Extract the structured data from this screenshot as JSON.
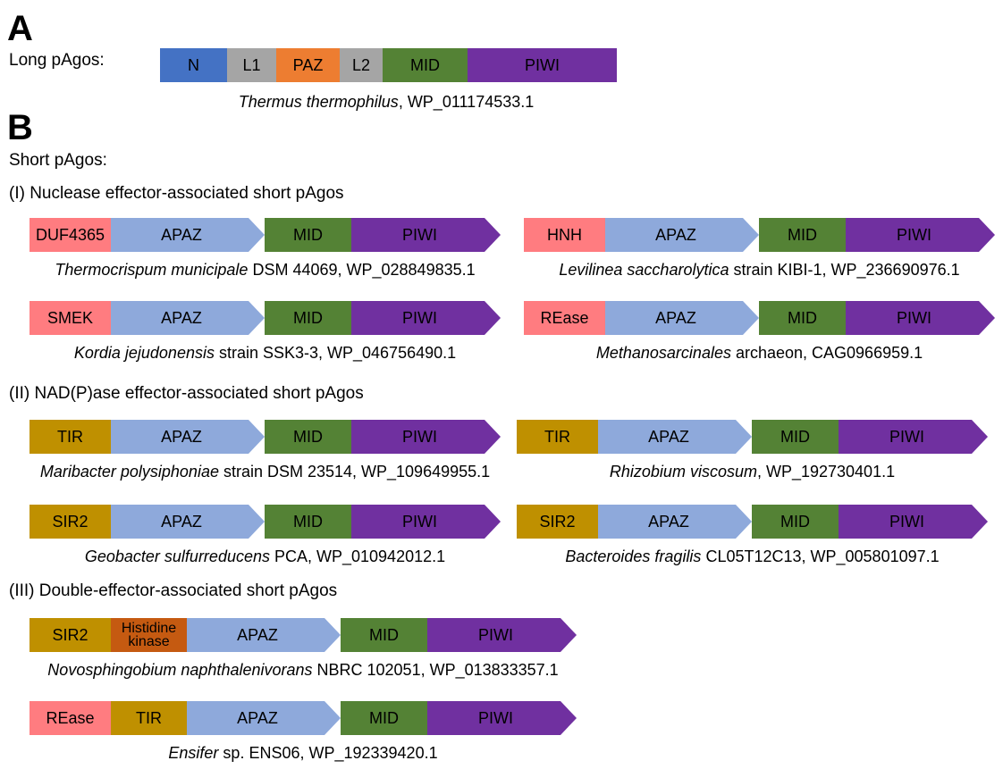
{
  "colors": {
    "N": "#4472C4",
    "L": "#A5A5A5",
    "PAZ": "#ED7D31",
    "MID": "#548235",
    "PIWI": "#7030A0",
    "APAZ": "#8EA9DB",
    "nuclease": "#FF7C80",
    "nadase": "#BF9000",
    "kinase": "#C55A11"
  },
  "panel_a": {
    "letter": "A",
    "title": "Long pAgos:",
    "construct": {
      "domains": [
        {
          "label": "N",
          "color": "N"
        },
        {
          "label": "L1",
          "color": "L"
        },
        {
          "label": "PAZ",
          "color": "PAZ"
        },
        {
          "label": "L2",
          "color": "L"
        },
        {
          "label": "MID",
          "color": "MID"
        },
        {
          "label": "PIWI",
          "color": "PIWI"
        }
      ],
      "species": "Thermus thermophilus",
      "rest": ", WP_011174533.1"
    }
  },
  "panel_b": {
    "letter": "B",
    "title": "Short pAgos:",
    "groups": [
      {
        "title": "(I) Nuclease effector-associated short pAgos",
        "constructs": [
          {
            "effectors": [
              {
                "label": "DUF4365",
                "color": "nuclease"
              }
            ],
            "species": "Thermocrispum municipale",
            "rest": " DSM 44069, WP_028849835.1"
          },
          {
            "effectors": [
              {
                "label": "HNH",
                "color": "nuclease"
              }
            ],
            "species": "Levilinea saccharolytica",
            "rest": " strain KIBI-1, WP_236690976.1"
          },
          {
            "effectors": [
              {
                "label": "SMEK",
                "color": "nuclease"
              }
            ],
            "species": "Kordia jejudonensis",
            "rest": " strain SSK3-3, WP_046756490.1"
          },
          {
            "effectors": [
              {
                "label": "REase",
                "color": "nuclease"
              }
            ],
            "species": "Methanosarcinales",
            "rest": " archaeon, CAG0966959.1"
          }
        ]
      },
      {
        "title": "(II) NAD(P)ase effector-associated short pAgos",
        "constructs": [
          {
            "effectors": [
              {
                "label": "TIR",
                "color": "nadase"
              }
            ],
            "species": "Maribacter polysiphoniae",
            "rest": " strain DSM 23514, WP_109649955.1"
          },
          {
            "effectors": [
              {
                "label": "TIR",
                "color": "nadase"
              }
            ],
            "species": "Rhizobium viscosum",
            "rest": ", WP_192730401.1"
          },
          {
            "effectors": [
              {
                "label": "SIR2",
                "color": "nadase"
              }
            ],
            "species": "Geobacter sulfurreducens",
            "rest": " PCA, WP_010942012.1"
          },
          {
            "effectors": [
              {
                "label": "SIR2",
                "color": "nadase"
              }
            ],
            "species": "Bacteroides fragilis",
            "rest": " CL05T12C13, WP_005801097.1"
          }
        ]
      },
      {
        "title": "(III) Double-effector-associated short pAgos",
        "constructs": [
          {
            "effectors": [
              {
                "label": "SIR2",
                "color": "nadase"
              },
              {
                "label": "Histidine kinase",
                "color": "kinase"
              }
            ],
            "species": "Novosphingobium naphthalenivorans",
            "rest": " NBRC 102051, WP_013833357.1"
          },
          {
            "effectors": [
              {
                "label": "REase",
                "color": "nuclease"
              },
              {
                "label": "TIR",
                "color": "nadase"
              }
            ],
            "species": "Ensifer",
            "rest": " sp. ENS06, WP_192339420.1"
          }
        ]
      }
    ],
    "core_domains": [
      {
        "label": "APAZ",
        "color": "APAZ",
        "arrow": true
      },
      {
        "label": "MID",
        "color": "MID",
        "arrow": false
      },
      {
        "label": "PIWI",
        "color": "PIWI",
        "arrow": true
      }
    ]
  }
}
